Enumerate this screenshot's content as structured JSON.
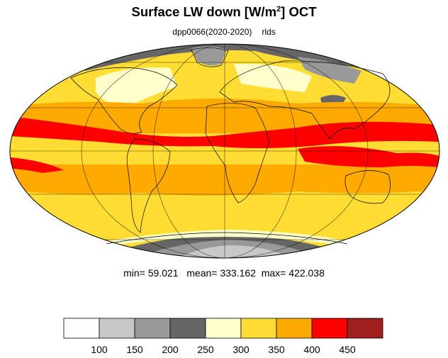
{
  "title": {
    "text_before_sup": "Surface LW down [W/m",
    "sup": "2",
    "text_after_sup": "]  OCT"
  },
  "subtitle": {
    "run": "dpp0066(2020-2020)",
    "variable": "rlds"
  },
  "stats": {
    "min_label": "min=",
    "min_value": "59.021",
    "mean_label": "mean=",
    "mean_value": "333.162",
    "max_label": "max=",
    "max_value": "422.038"
  },
  "legend": {
    "colors": [
      "#ffffff",
      "#c8c8c8",
      "#999999",
      "#666666",
      "#ffffcc",
      "#ffdd33",
      "#ffaa00",
      "#ff0000",
      "#a02020"
    ],
    "tick_labels": [
      "100",
      "150",
      "200",
      "250",
      "300",
      "350",
      "400",
      "450"
    ]
  },
  "map_colors": {
    "ocean_cold": "#ffdd33",
    "ocean_warm": "#ffaa00",
    "tropics": "#ff0000",
    "ice_light": "#c8c8c8",
    "ice_mid": "#999999",
    "ice_dark": "#666666",
    "cool": "#ffffcc"
  }
}
